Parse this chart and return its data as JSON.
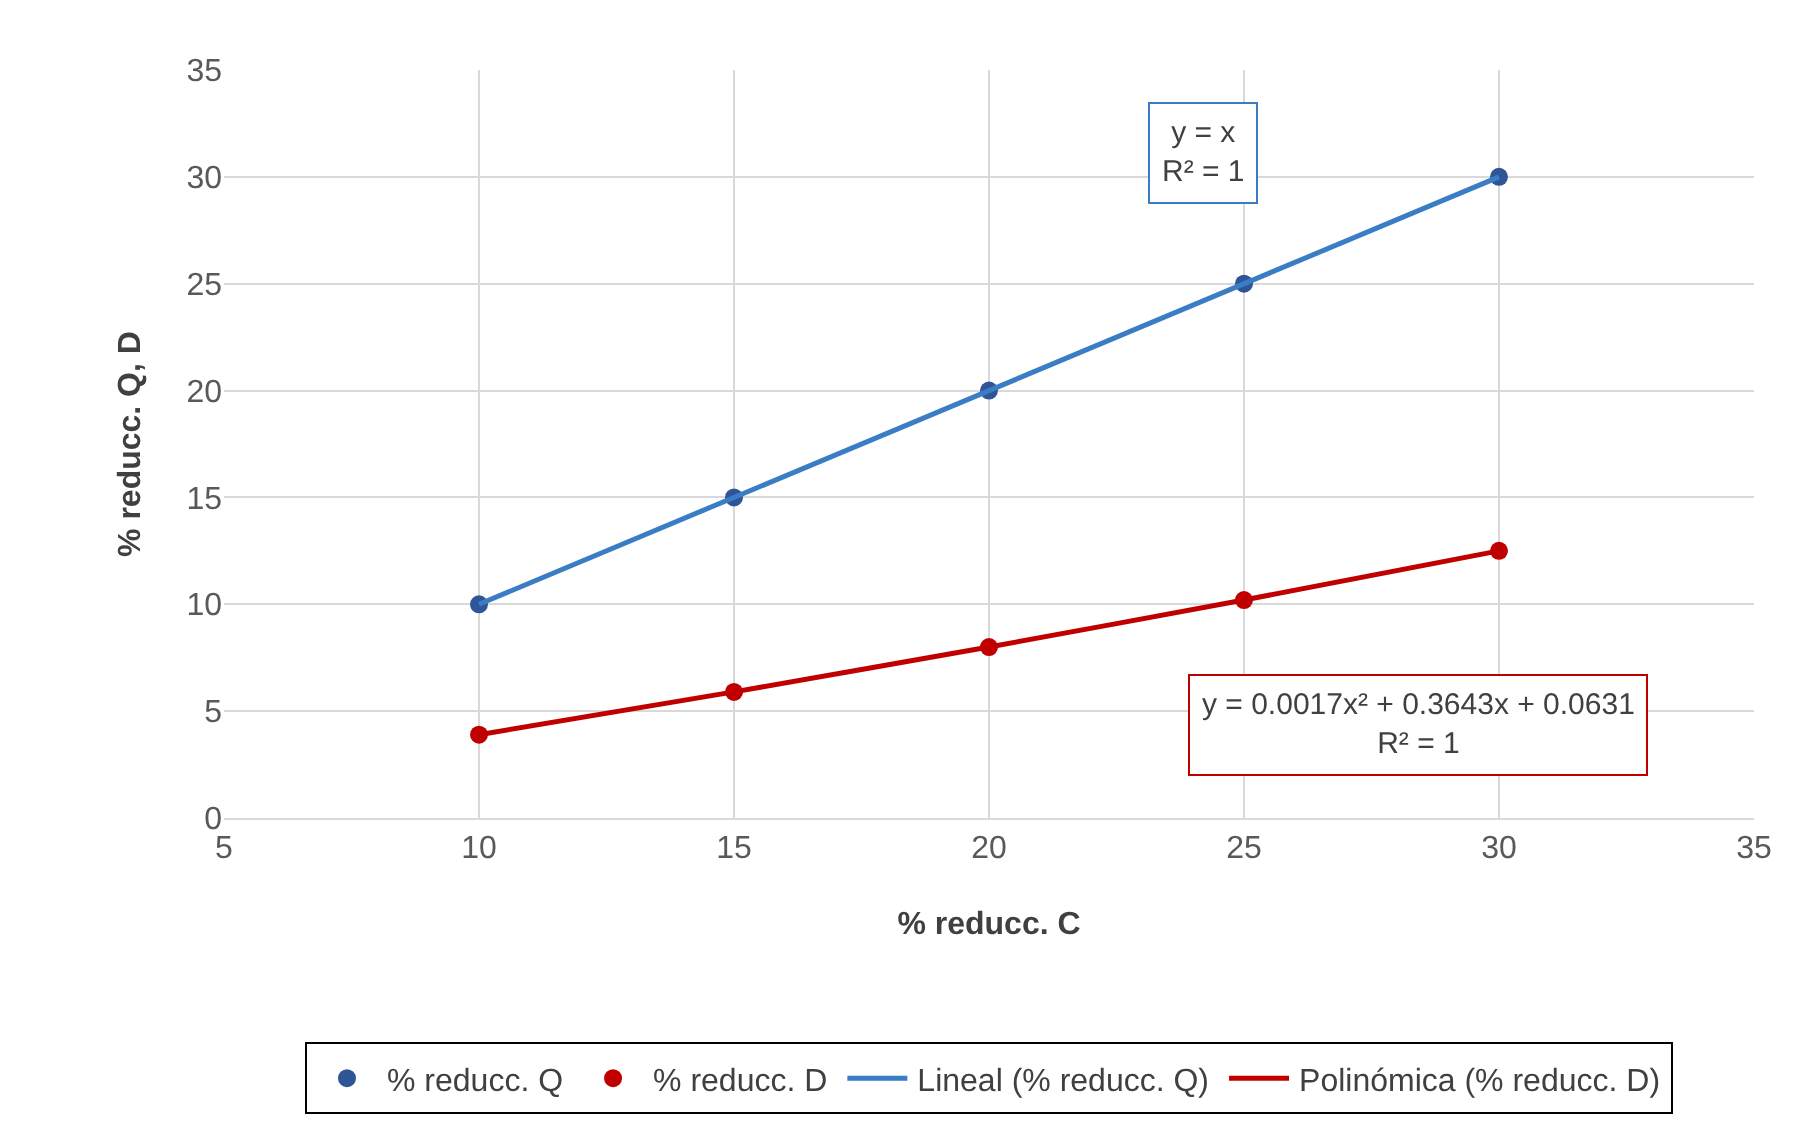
{
  "chart_data": {
    "type": "scatter",
    "xlabel": "% reducc. C",
    "ylabel": "% reducc. Q, D",
    "x": [
      10,
      15,
      20,
      25,
      30
    ],
    "series": [
      {
        "name": "% reducc. Q",
        "type": "scatter",
        "color": "#2f5597",
        "marker": "circle",
        "values": [
          10,
          15,
          20,
          25,
          30
        ]
      },
      {
        "name": "% reducc. D",
        "type": "scatter",
        "color": "#c00000",
        "marker": "circle",
        "values": [
          3.9,
          5.9,
          8.0,
          10.2,
          12.5
        ]
      },
      {
        "name": "Lineal (% reducc. Q)",
        "type": "line",
        "color": "#3a7dc4",
        "marker": "none",
        "line_style": "solid",
        "x": [
          10,
          30
        ],
        "values": [
          10,
          30
        ]
      },
      {
        "name": "Polinómica (% reducc. D)",
        "type": "line",
        "color": "#c00000",
        "marker": "none",
        "line_style": "solid",
        "x": [
          10,
          15,
          20,
          25,
          30
        ],
        "values": [
          3.9,
          5.9,
          8.0,
          10.2,
          12.5
        ]
      }
    ],
    "annotations": [
      "y = x\nR² = 1",
      "y = 0.0017x² + 0.3643x + 0.0631\nR² = 1"
    ],
    "xlim": [
      5,
      35
    ],
    "xticks": [
      5,
      10,
      15,
      20,
      25,
      30,
      35
    ],
    "ylim": [
      0,
      35
    ],
    "yticks": [
      0,
      5,
      10,
      15,
      20,
      25,
      30,
      35
    ],
    "grid": true,
    "legend": "bottom"
  }
}
